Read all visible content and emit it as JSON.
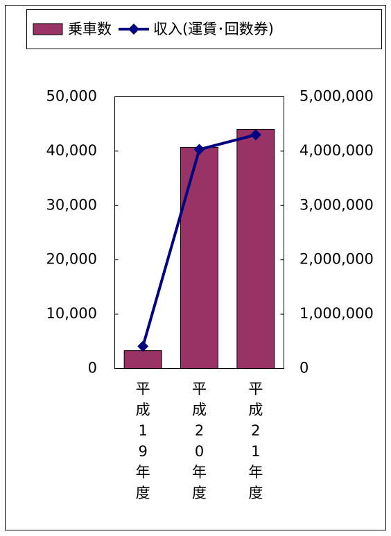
{
  "chart_data": {
    "type": "bar",
    "categories": [
      "平成19年度",
      "平成20年度",
      "平成21年度"
    ],
    "series": [
      {
        "name": "乗車数",
        "type": "bar",
        "color": "#993366",
        "values": [
          3300,
          40700,
          44000
        ]
      },
      {
        "name": "収入(運賃･回数券)",
        "type": "line",
        "axis": "y2",
        "color": "#000080",
        "values": [
          410000,
          4030000,
          4300000
        ]
      }
    ],
    "ylim": [
      0,
      50000
    ],
    "yticks": [
      {
        "value": 0,
        "label": "0"
      },
      {
        "value": 10000,
        "label": "10,000"
      },
      {
        "value": 20000,
        "label": "20,000"
      },
      {
        "value": 30000,
        "label": "30,000"
      },
      {
        "value": 40000,
        "label": "40,000"
      },
      {
        "value": 50000,
        "label": "50,000"
      }
    ],
    "y2lim": [
      0,
      5000000
    ],
    "y2ticks": [
      {
        "value": 0,
        "label": "0"
      },
      {
        "value": 1000000,
        "label": "1,000,000"
      },
      {
        "value": 2000000,
        "label": "2,000,000"
      },
      {
        "value": 3000000,
        "label": "3,000,000"
      },
      {
        "value": 4000000,
        "label": "4,000,000"
      },
      {
        "value": 5000000,
        "label": "5,000,000"
      }
    ],
    "legend": "top"
  }
}
